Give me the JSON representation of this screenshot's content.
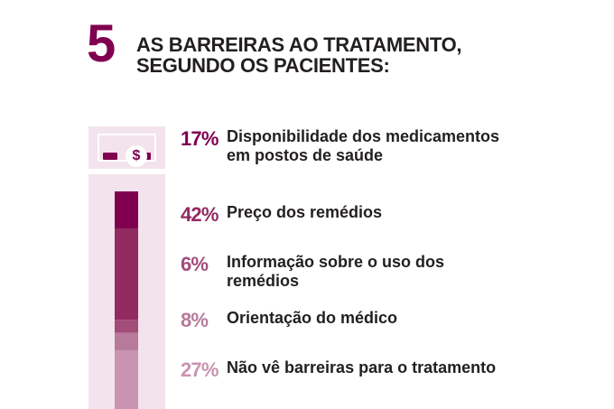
{
  "header": {
    "number": "5",
    "title_line1": "AS BARREIRAS AO TRATAMENTO,",
    "title_line2": "SEGUNDO OS PACIENTES:"
  },
  "colors": {
    "accent": "#800050",
    "panel_bg": "#f2e3ec",
    "text_dark": "#231f20"
  },
  "icon": {
    "name": "money-icon",
    "symbol": "$"
  },
  "chart_data": {
    "type": "bar",
    "stacked": true,
    "unit": "%",
    "categories": [
      "Disponibilidade dos medicamentos em postos de saúde",
      "Preço dos remédios",
      "Informação sobre o uso dos remédios",
      "Orientação do médico",
      "Não vê barreiras para o tratamento"
    ],
    "values": [
      17,
      42,
      6,
      8,
      27
    ],
    "value_labels": [
      "17%",
      "42%",
      "6%",
      "8%",
      "27%"
    ],
    "label_lines": [
      [
        "Disponibilidade dos medicamentos",
        "em postos de saúde"
      ],
      [
        "Preço dos remédios"
      ],
      [
        "Informação sobre o uso dos",
        "remédios"
      ],
      [
        "Orientação do médico"
      ],
      [
        "Não vê barreiras para o tratamento"
      ]
    ],
    "colors": [
      "#800050",
      "#922a62",
      "#a24c7a",
      "#b77a9a",
      "#c994b1"
    ]
  }
}
